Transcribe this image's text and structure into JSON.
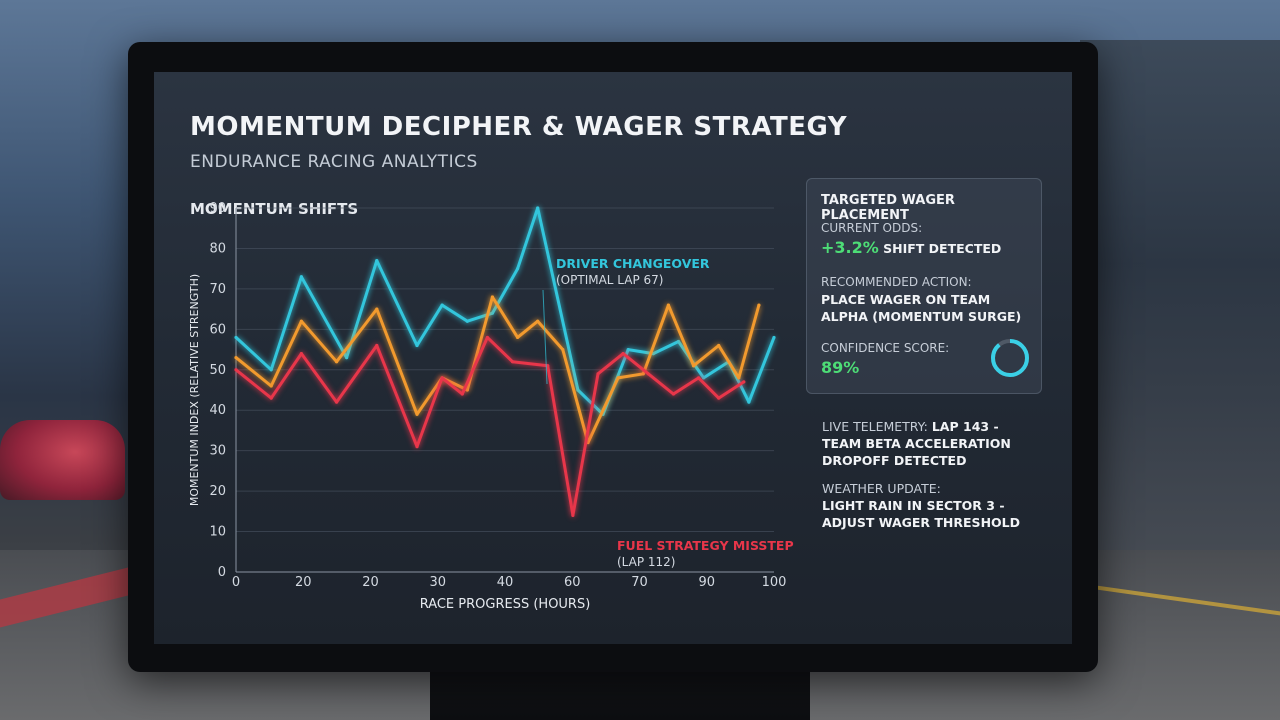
{
  "header": {
    "title": "MOMENTUM DECIPHER & WAGER STRATEGY",
    "subtitle": "ENDURANCE RACING ANALYTICS"
  },
  "colors": {
    "cyan": "#33c6dc",
    "orange": "#f29a2e",
    "red": "#e8364a",
    "green": "#4ddc76"
  },
  "chart_data": {
    "type": "line",
    "title": "MOMENTUM SHIFTS",
    "xlabel": "RACE PROGRESS (HOURS)",
    "ylabel": "MOMENTUM INDEX (RELATIVE STRENGTH)",
    "ylim": [
      0,
      90
    ],
    "y_ticks": [
      "0",
      "10",
      "20",
      "30",
      "40",
      "50",
      "60",
      "70",
      "80",
      "90"
    ],
    "x_tick_labels": [
      "0",
      "20",
      "20",
      "30",
      "40",
      "60",
      "70",
      "90",
      "100"
    ],
    "grid": true,
    "series": [
      {
        "color": "#33c6dc",
        "points": [
          [
            0,
            58
          ],
          [
            7,
            50
          ],
          [
            13,
            73
          ],
          [
            22,
            53
          ],
          [
            28,
            77
          ],
          [
            36,
            56
          ],
          [
            41,
            66
          ],
          [
            46,
            62
          ],
          [
            51,
            64
          ],
          [
            56,
            75
          ],
          [
            60,
            95
          ],
          [
            68,
            45
          ],
          [
            73,
            39
          ],
          [
            78,
            55
          ],
          [
            83,
            54
          ],
          [
            88,
            57
          ],
          [
            93,
            48
          ],
          [
            98,
            52
          ],
          [
            102,
            42
          ],
          [
            107,
            58
          ]
        ]
      },
      {
        "color": "#f29a2e",
        "points": [
          [
            0,
            53
          ],
          [
            7,
            46
          ],
          [
            13,
            62
          ],
          [
            20,
            52
          ],
          [
            28,
            65
          ],
          [
            36,
            39
          ],
          [
            41,
            48
          ],
          [
            46,
            45
          ],
          [
            51,
            68
          ],
          [
            56,
            58
          ],
          [
            60,
            62
          ],
          [
            65,
            55
          ],
          [
            70,
            32
          ],
          [
            76,
            48
          ],
          [
            81,
            49
          ],
          [
            86,
            66
          ],
          [
            91,
            51
          ],
          [
            96,
            56
          ],
          [
            100,
            48
          ],
          [
            104,
            66
          ]
        ]
      },
      {
        "color": "#e8364a",
        "points": [
          [
            0,
            50
          ],
          [
            7,
            43
          ],
          [
            13,
            54
          ],
          [
            20,
            42
          ],
          [
            28,
            56
          ],
          [
            36,
            31
          ],
          [
            41,
            48
          ],
          [
            45,
            44
          ],
          [
            50,
            58
          ],
          [
            55,
            52
          ],
          [
            62,
            51
          ],
          [
            67,
            14
          ],
          [
            72,
            49
          ],
          [
            77,
            54
          ],
          [
            82,
            49
          ],
          [
            87,
            44
          ],
          [
            92,
            48
          ],
          [
            96,
            43
          ],
          [
            101,
            47
          ]
        ]
      }
    ],
    "annotations": [
      {
        "label": "DRIVER CHANGEOVER",
        "sublabel": "(OPTIMAL LAP 67)",
        "color": "#33c6dc"
      },
      {
        "label": "FUEL STRATEGY MISSTEP",
        "sublabel": "(LAP 112)",
        "color": "#e8364a"
      }
    ]
  },
  "wager_panel": {
    "title": "TARGETED WAGER PLACEMENT",
    "odds_label": "CURRENT ODDS:",
    "odds_value": "+3.2%",
    "odds_suffix": "SHIFT DETECTED",
    "action_label": "RECOMMENDED ACTION:",
    "action_value": "PLACE WAGER ON TEAM ALPHA (MOMENTUM SURGE)",
    "confidence_label": "CONFIDENCE SCORE:",
    "confidence_value": "89%",
    "confidence_fraction": 0.89
  },
  "live_feed": {
    "telemetry_label": "LIVE TELEMETRY:",
    "telemetry_value": "LAP 143 - TEAM BETA ACCELERATION DROPOFF DETECTED",
    "weather_label": "WEATHER UPDATE:",
    "weather_value": "LIGHT RAIN IN SECTOR 3 - ADJUST WAGER THRESHOLD"
  }
}
